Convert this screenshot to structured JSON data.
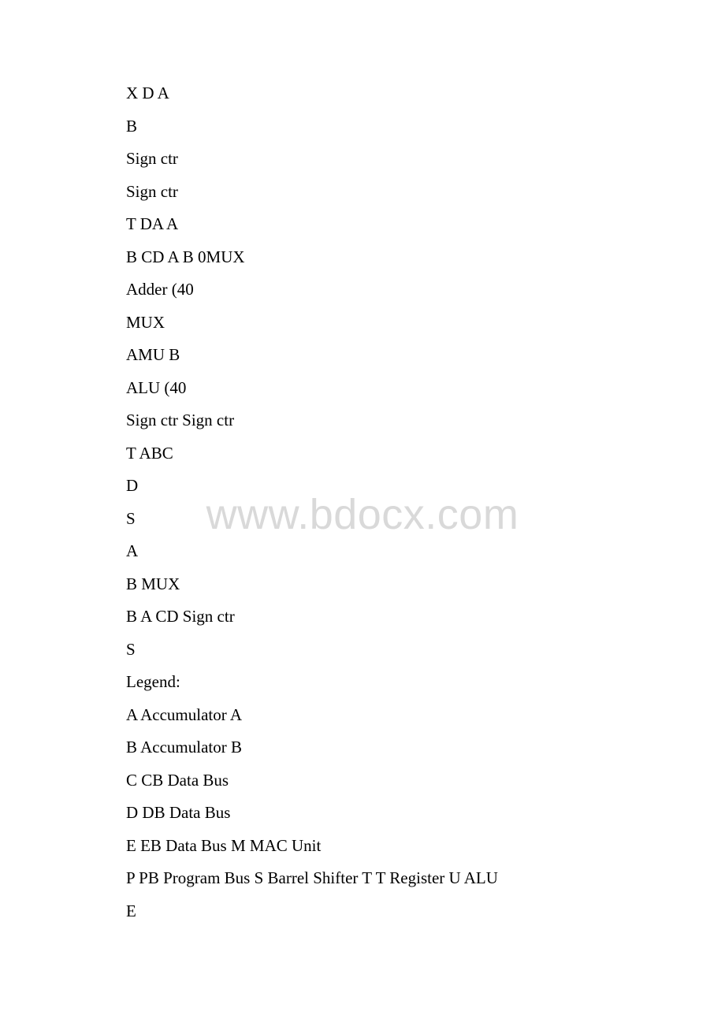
{
  "watermark": "www.bdocx.com",
  "lines": [
    "X D A",
    "B",
    "Sign ctr",
    "Sign ctr",
    "T DA A",
    "B CD A B 0MUX",
    "Adder (40",
    "MUX",
    "AMU B",
    "ALU (40",
    "Sign ctr Sign ctr",
    "T ABC",
    "D",
    "S",
    "A",
    "B MUX",
    "B A CD Sign ctr",
    "S",
    "Legend:",
    "A Accumulator A",
    "B Accumulator B",
    "C CB Data Bus",
    "D DB Data Bus",
    "E EB Data Bus M MAC Unit",
    "P PB Program Bus S Barrel Shifter T T Register U ALU",
    "E"
  ]
}
